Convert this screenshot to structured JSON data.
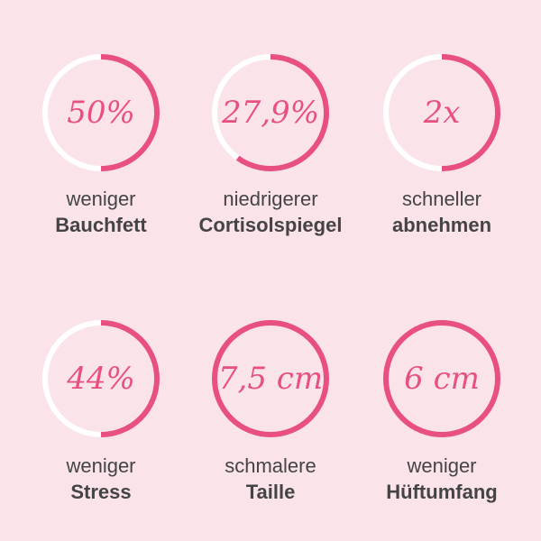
{
  "items": [
    {
      "value": "50%",
      "line1": "weniger",
      "line2": "Bauchfett"
    },
    {
      "value": "27,9%",
      "line1": "niedrigerer",
      "line2": "Cortisolspiegel"
    },
    {
      "value": "2x",
      "line1": "schneller",
      "line2": "abnehmen"
    },
    {
      "value": "44%",
      "line1": "weniger",
      "line2": "Stress"
    },
    {
      "value": "7,5 cm",
      "line1": "schmalere",
      "line2": "Taille"
    },
    {
      "value": "6 cm",
      "line1": "weniger",
      "line2": "Hüftumfang"
    }
  ]
}
